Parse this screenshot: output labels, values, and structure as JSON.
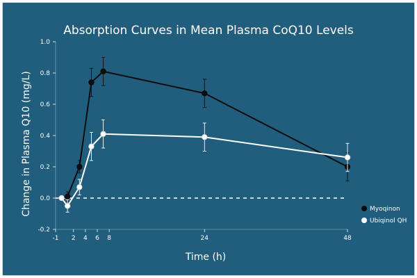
{
  "chart_data": {
    "type": "line",
    "title": "Absorption Curves in Mean Plasma CoQ10 Levels",
    "xlabel": "Time (h)",
    "ylabel": "Change in Plasma Q10 (mg/L)",
    "xlim": [
      -1,
      48
    ],
    "ylim": [
      -0.2,
      1.0
    ],
    "x_ticks": [
      -1,
      2,
      4,
      6,
      8,
      24,
      48
    ],
    "y_ticks": [
      -0.2,
      0.0,
      0.2,
      0.4,
      0.6,
      0.8,
      1.0
    ],
    "y_tick_labels": [
      "-0.2",
      "0.0",
      "0.2",
      "0.4",
      "0.6",
      "0.8",
      "1.0"
    ],
    "grid": false,
    "baseline": 0.0,
    "legend_position": "right",
    "series": [
      {
        "name": "Myoqinon",
        "color": "#0d0d0d",
        "x": [
          0,
          1,
          3,
          5,
          7,
          24,
          48
        ],
        "y": [
          0.0,
          0.01,
          0.2,
          0.74,
          0.81,
          0.67,
          0.2
        ],
        "error": [
          0.0,
          0.03,
          0.04,
          0.09,
          0.09,
          0.09,
          0.09
        ]
      },
      {
        "name": "Ubiqinol QH",
        "color": "#ffffff",
        "x": [
          0,
          1,
          3,
          5,
          7,
          24,
          48
        ],
        "y": [
          0.0,
          -0.05,
          0.07,
          0.33,
          0.41,
          0.39,
          0.26
        ],
        "error": [
          0.0,
          0.04,
          0.05,
          0.09,
          0.09,
          0.09,
          0.09
        ]
      }
    ]
  }
}
